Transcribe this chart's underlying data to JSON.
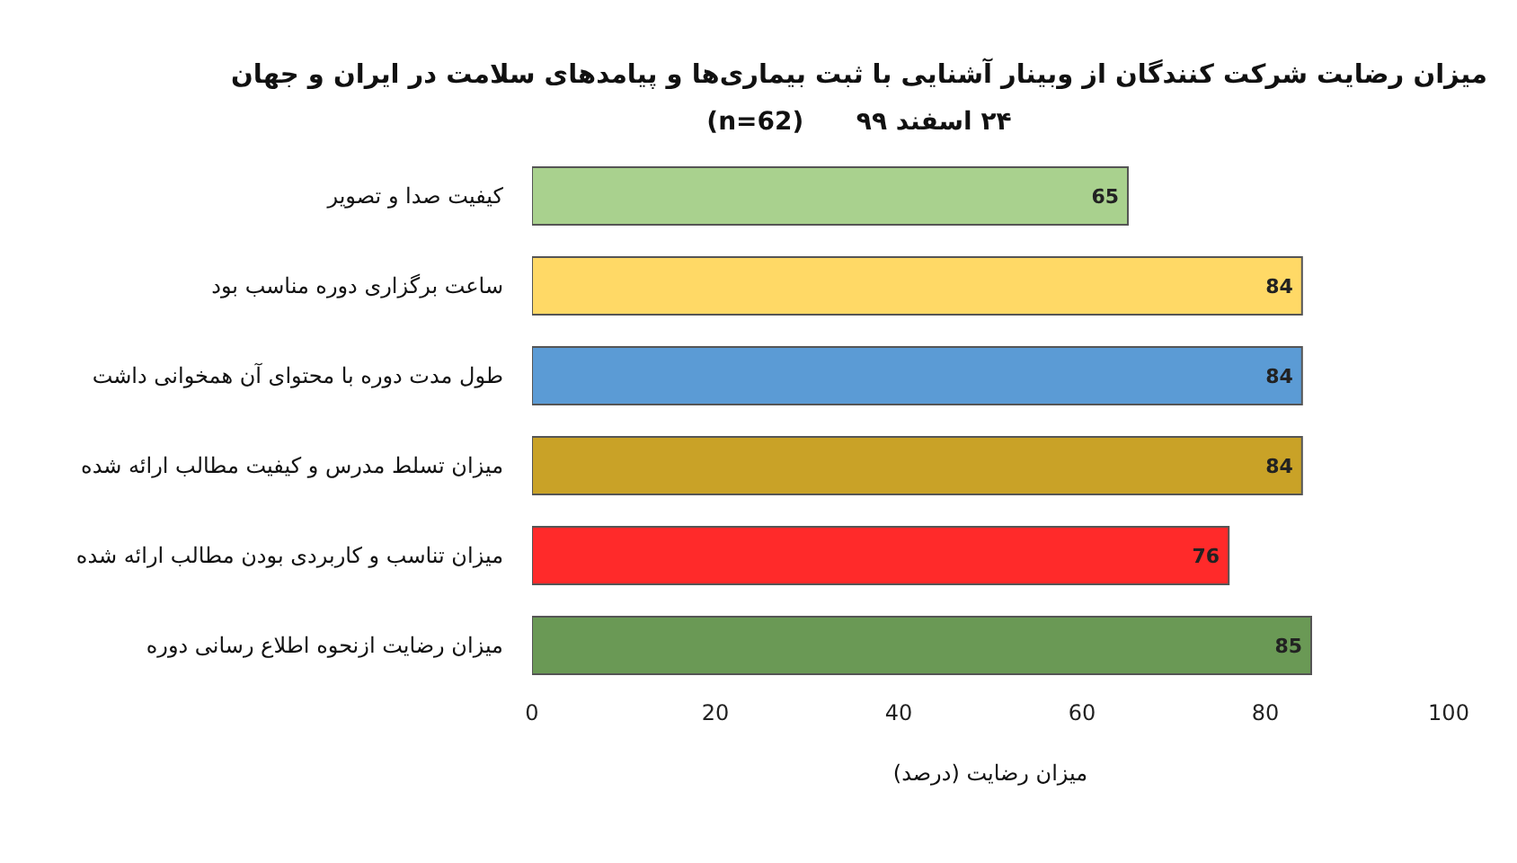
{
  "chart_data": {
    "type": "bar",
    "orientation": "horizontal",
    "title": "میزان رضایت شرکت کنندگان از وبینار آشنایی با ثبت بیماری‌ها و پیامدهای سلامت در ایران و جهان",
    "subtitle": "۲۴ اسفند ۹۹      (n=62)",
    "xlabel": "میزان رضایت (درصد)",
    "categories": [
      "کیفیت صدا و تصویر",
      "ساعت برگزاری دوره مناسب بود",
      "طول مدت دوره با محتوای آن همخوانی داشت",
      "میزان تسلط مدرس و کیفیت مطالب ارائه شده",
      "میزان تناسب و کاربردی بودن مطالب ارائه شده",
      "میزان رضایت ازنحوه اطلاع رسانی دوره"
    ],
    "values": [
      65,
      84,
      84,
      84,
      76,
      85
    ],
    "colors": [
      "#a9d18e",
      "#ffd966",
      "#5b9bd5",
      "#c9a227",
      "#ff2a2a",
      "#6a9955"
    ],
    "xlim": [
      0,
      100
    ],
    "xticks": [
      0,
      20,
      40,
      60,
      80,
      100
    ],
    "data_labels": true,
    "grid": false
  }
}
